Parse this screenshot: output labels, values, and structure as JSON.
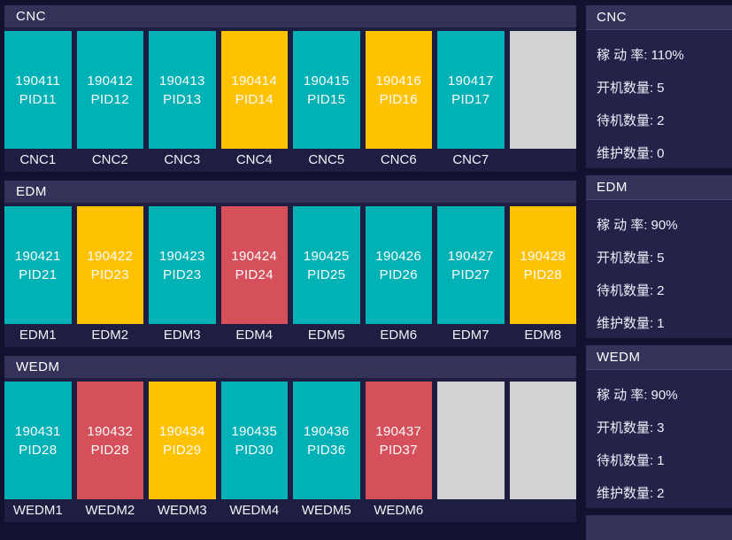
{
  "colors": {
    "running": "#00b1b5",
    "standby": "#ffc200",
    "maintenance": "#d5505a",
    "empty": "#d2d2d2"
  },
  "theme": {
    "page_bg": "#121130",
    "card_bg": "#1e1e42",
    "header_bg": "#33335a"
  },
  "stat_labels": {
    "rate": "稼 动 率:",
    "on": "开机数量:",
    "standby": "待机数量:",
    "maintenance": "维护数量:"
  },
  "groups": [
    {
      "name": "CNC",
      "stats": {
        "rate": "110%",
        "on": "5",
        "standby": "2",
        "maintenance": "0"
      },
      "machines": [
        {
          "line1": "190411",
          "line2": "PID11",
          "label": "CNC1",
          "status": "running"
        },
        {
          "line1": "190412",
          "line2": "PID12",
          "label": "CNC2",
          "status": "running"
        },
        {
          "line1": "190413",
          "line2": "PID13",
          "label": "CNC3",
          "status": "running"
        },
        {
          "line1": "190414",
          "line2": "PID14",
          "label": "CNC4",
          "status": "standby"
        },
        {
          "line1": "190415",
          "line2": "PID15",
          "label": "CNC5",
          "status": "running"
        },
        {
          "line1": "190416",
          "line2": "PID16",
          "label": "CNC6",
          "status": "standby"
        },
        {
          "line1": "190417",
          "line2": "PID17",
          "label": "CNC7",
          "status": "running"
        },
        {
          "line1": "",
          "line2": "",
          "label": "",
          "status": "empty"
        }
      ]
    },
    {
      "name": "EDM",
      "stats": {
        "rate": "90%",
        "on": "5",
        "standby": "2",
        "maintenance": "1"
      },
      "machines": [
        {
          "line1": "190421",
          "line2": "PID21",
          "label": "EDM1",
          "status": "running"
        },
        {
          "line1": "190422",
          "line2": "PID23",
          "label": "EDM2",
          "status": "standby"
        },
        {
          "line1": "190423",
          "line2": "PID23",
          "label": "EDM3",
          "status": "running"
        },
        {
          "line1": "190424",
          "line2": "PID24",
          "label": "EDM4",
          "status": "maintenance"
        },
        {
          "line1": "190425",
          "line2": "PID25",
          "label": "EDM5",
          "status": "running"
        },
        {
          "line1": "190426",
          "line2": "PID26",
          "label": "EDM6",
          "status": "running"
        },
        {
          "line1": "190427",
          "line2": "PID27",
          "label": "EDM7",
          "status": "running"
        },
        {
          "line1": "190428",
          "line2": "PID28",
          "label": "EDM8",
          "status": "standby"
        }
      ]
    },
    {
      "name": "WEDM",
      "stats": {
        "rate": "90%",
        "on": "3",
        "standby": "1",
        "maintenance": "2"
      },
      "machines": [
        {
          "line1": "190431",
          "line2": "PID28",
          "label": "WEDM1",
          "status": "running"
        },
        {
          "line1": "190432",
          "line2": "PID28",
          "label": "WEDM2",
          "status": "maintenance"
        },
        {
          "line1": "190434",
          "line2": "PID29",
          "label": "WEDM3",
          "status": "standby"
        },
        {
          "line1": "190435",
          "line2": "PID30",
          "label": "WEDM4",
          "status": "running"
        },
        {
          "line1": "190436",
          "line2": "PID36",
          "label": "WEDM5",
          "status": "running"
        },
        {
          "line1": "190437",
          "line2": "PID37",
          "label": "WEDM6",
          "status": "maintenance"
        },
        {
          "line1": "",
          "line2": "",
          "label": "",
          "status": "empty"
        },
        {
          "line1": "",
          "line2": "",
          "label": "",
          "status": "empty"
        }
      ]
    }
  ]
}
